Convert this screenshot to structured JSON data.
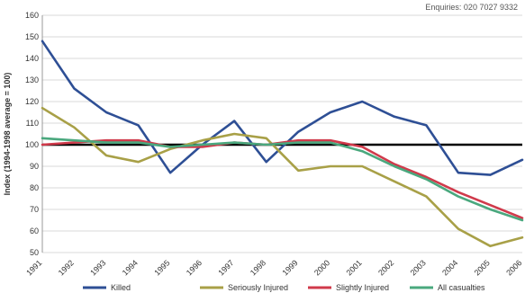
{
  "header": {
    "enquiries": "Enquiries: 020 7027 9332"
  },
  "chart_data": {
    "type": "line",
    "ylabel": "Index (1994-1998 average = 100)",
    "xlabel": "",
    "ylim": [
      50,
      160
    ],
    "yticks": [
      50,
      60,
      70,
      80,
      90,
      100,
      110,
      120,
      130,
      140,
      150,
      160
    ],
    "categories": [
      "1991",
      "1992",
      "1993",
      "1994",
      "1995",
      "1996",
      "1997",
      "1998",
      "1999",
      "2000",
      "2001",
      "2002",
      "2003",
      "2004",
      "2005",
      "2006"
    ],
    "grid": "horizontal",
    "legend": "bottom",
    "reference_line": {
      "value": 100,
      "color": "#000000"
    },
    "series": [
      {
        "name": "Killed",
        "color": "#2e4f95",
        "values": [
          148,
          126,
          115,
          109,
          87,
          100,
          111,
          92,
          106,
          115,
          120,
          113,
          109,
          87,
          86,
          93
        ]
      },
      {
        "name": "Seriously Injured",
        "color": "#a8a047",
        "values": [
          117,
          108,
          95,
          92,
          98,
          102,
          105,
          103,
          88,
          90,
          90,
          83,
          76,
          61,
          53,
          57
        ]
      },
      {
        "name": "Slightly Injured",
        "color": "#d03a4b",
        "values": [
          100,
          101,
          102,
          102,
          99,
          99,
          101,
          100,
          102,
          102,
          99,
          91,
          85,
          78,
          72,
          66
        ]
      },
      {
        "name": "All casualties",
        "color": "#4aa87e",
        "values": [
          103,
          102,
          101,
          101,
          99,
          100,
          101,
          100,
          101,
          101,
          97,
          90,
          84,
          76,
          70,
          65
        ]
      }
    ]
  }
}
